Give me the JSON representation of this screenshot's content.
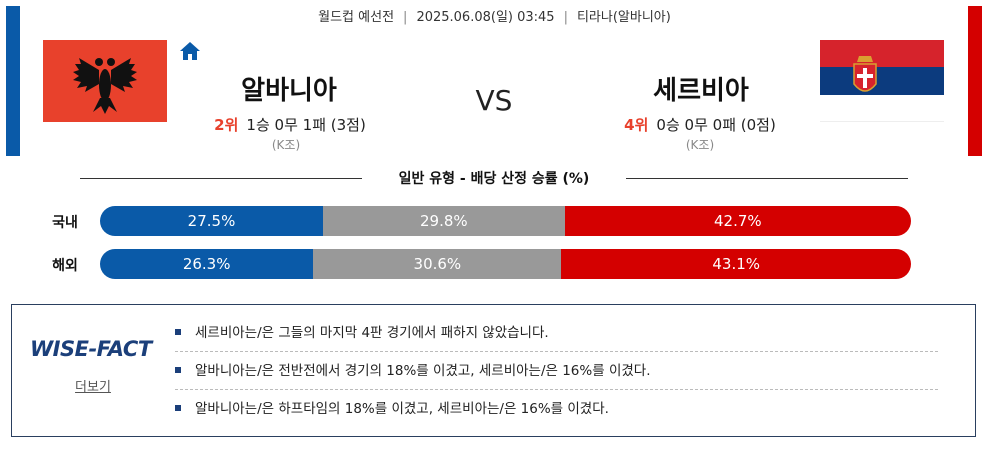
{
  "colors": {
    "home": "#0a5aa8",
    "draw": "#999999",
    "away": "#d40000",
    "rank": "#e8412c"
  },
  "match": {
    "competition": "월드컵 예선전",
    "datetime": "2025.06.08(일) 03:45",
    "venue": "티라나(알바니아)"
  },
  "home": {
    "name": "알바니아",
    "rank": "2위",
    "record": "1승 0무 1패 (3점)",
    "group": "(K조)",
    "flag_icon": "albania-flag-icon"
  },
  "away": {
    "name": "세르비아",
    "rank": "4위",
    "record": "0승 0무 0패 (0점)",
    "group": "(K조)",
    "flag_icon": "serbia-flag-icon"
  },
  "vs": "VS",
  "odds_section": {
    "title": "일반 유형 - 배당 산정 승률 (%)",
    "rows": [
      {
        "label": "국내",
        "home": 27.5,
        "draw": 29.8,
        "away": 42.7,
        "home_text": "27.5%",
        "draw_text": "29.8%",
        "away_text": "42.7%"
      },
      {
        "label": "해외",
        "home": 26.3,
        "draw": 30.6,
        "away": 43.1,
        "home_text": "26.3%",
        "draw_text": "30.6%",
        "away_text": "43.1%"
      }
    ]
  },
  "facts": {
    "logo": "WISE-FACT",
    "more": "더보기",
    "items": [
      "세르비아는/은 그들의 마지막 4판 경기에서 패하지 않았습니다.",
      "알바니아는/은 전반전에서 경기의 18%를 이겼고, 세르비아는/은 16%를 이겼다.",
      "알바니아는/은 하프타임의 18%를 이겼고, 세르비아는/은 16%를 이겼다."
    ]
  }
}
